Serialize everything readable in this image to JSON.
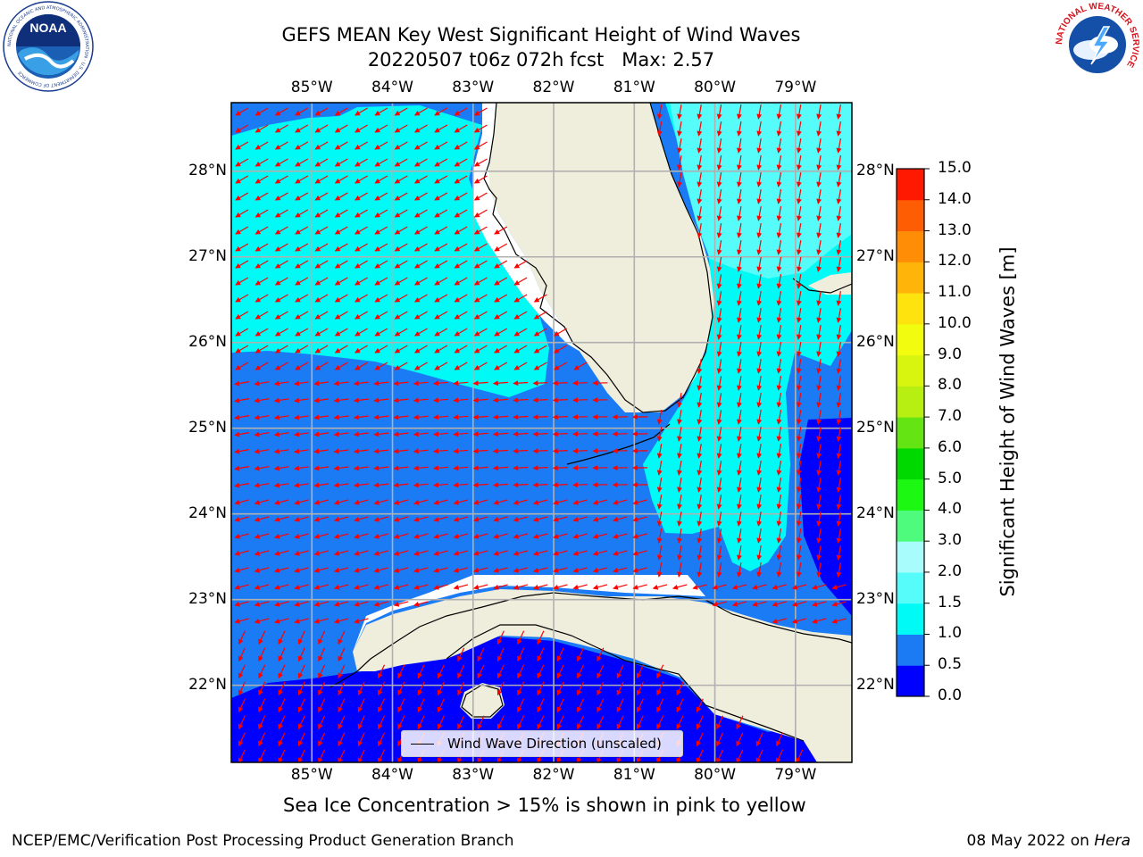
{
  "title": {
    "line1": "GEFS MEAN Key West Significant Height of Wind Waves",
    "line2": "20220507 t06z 072h fcst   Max: 2.57"
  },
  "logos": {
    "left": "noaa-logo",
    "left_text": "NOAA",
    "left_ring_text": "NATIONAL OCEANIC AND ATMOSPHERIC ADMINISTRATION · U.S. DEPARTMENT OF COMMERCE",
    "right": "national-weather-service-logo",
    "right_ring_text": "NATIONAL WEATHER SERVICE"
  },
  "map": {
    "lon_labels": [
      "85°W",
      "84°W",
      "83°W",
      "82°W",
      "81°W",
      "80°W",
      "79°W"
    ],
    "lat_labels": [
      "28°N",
      "27°N",
      "26°N",
      "25°N",
      "24°N",
      "23°N",
      "22°N"
    ],
    "extent": {
      "lon": [
        -86.0,
        -78.3
      ],
      "lat": [
        21.1,
        28.8
      ]
    },
    "grid": true,
    "colors": {
      "land": "#efeedd",
      "coast": "#000000",
      "gridline": "#b0b0b0",
      "arrow": "#ff0000",
      "level_0_0.5": "#0000ff",
      "level_0.5_1.0": "#1b7bf5",
      "level_1.0_1.5": "#00fbf7",
      "level_1.5_2.0": "#55fcf9",
      "level_2.0_3.0": "#a8fdfc"
    },
    "legend_label": "Wind Wave Direction (unscaled)"
  },
  "colorbar": {
    "label": "Significant Height of Wind Waves [m]",
    "ticks": [
      "0.0",
      "0.5",
      "1.0",
      "1.5",
      "2.0",
      "3.0",
      "4.0",
      "5.0",
      "6.0",
      "7.0",
      "8.0",
      "9.0",
      "10.0",
      "11.0",
      "12.0",
      "13.0",
      "14.0",
      "15.0"
    ],
    "colors": [
      "#0000ff",
      "#1b7bf5",
      "#00fbf7",
      "#55fcf9",
      "#a8fdfc",
      "#4efb7c",
      "#1df812",
      "#00d900",
      "#64e412",
      "#b7ef12",
      "#d8f510",
      "#f2fc0e",
      "#ffe30e",
      "#ffb40a",
      "#ff8d06",
      "#ff5d03",
      "#ff1900"
    ]
  },
  "footer": {
    "ice_note": "Sea Ice Concentration > 15% is shown in pink to yellow",
    "left": "NCEP/EMC/Verification Post Processing Product Generation Branch",
    "right_date": "08 May 2022 on ",
    "right_machine": "Hera"
  }
}
